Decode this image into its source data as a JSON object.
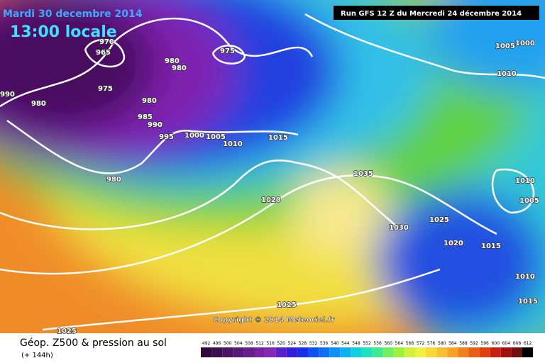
{
  "header": {
    "date": "Mardi 30 decembre 2014",
    "time": "13:00 locale",
    "run": "Run GFS 12 Z du Mercredi 24 décembre 2014"
  },
  "isobar_labels": [
    "990",
    "970",
    "965",
    "975",
    "980",
    "980",
    "980",
    "980",
    "985",
    "990",
    "995",
    "1000",
    "1005",
    "1010",
    "975",
    "980",
    "1015",
    "1020",
    "1035",
    "1030",
    "1025",
    "1020",
    "1015",
    "1010",
    "1005",
    "1010",
    "1015",
    "1025",
    "1025",
    "1005",
    "1000",
    "1010"
  ],
  "copyright": "Copyright © 2014 Meteociel.fr",
  "legend": {
    "title": "Géop. Z500 & pression au sol",
    "lead": "(+ 144h)",
    "scale": [
      492,
      496,
      500,
      504,
      508,
      512,
      516,
      520,
      524,
      528,
      532,
      536,
      540,
      544,
      548,
      552,
      556,
      560,
      564,
      568,
      572,
      576,
      580,
      584,
      588,
      592,
      596,
      600,
      604,
      608,
      612
    ],
    "colors": [
      "#2e0a3c",
      "#3c1050",
      "#4a1564",
      "#5a1a78",
      "#6a1e8c",
      "#7a22a0",
      "#8a26b4",
      "#5a20c8",
      "#3020d8",
      "#1830e8",
      "#1050f0",
      "#1070f4",
      "#1090f4",
      "#10b0f0",
      "#10d0e0",
      "#20e0c0",
      "#40e890",
      "#70f060",
      "#a0f040",
      "#d0f040",
      "#f0f040",
      "#f8d838",
      "#f8c030",
      "#f8a028",
      "#f08020",
      "#e86018",
      "#e04010",
      "#c82010",
      "#a01010",
      "#701010",
      "#000000"
    ]
  }
}
